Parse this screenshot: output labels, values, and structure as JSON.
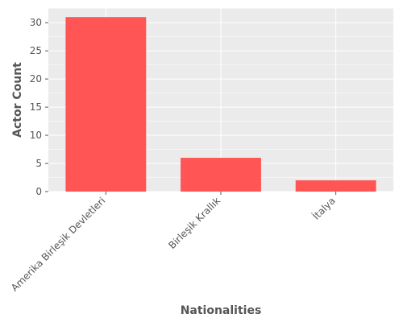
{
  "chart_data": {
    "type": "bar",
    "title": "",
    "xlabel": "Nationalities",
    "ylabel": "Actor Count",
    "categories": [
      "Amerika Birleşik Devletleri",
      "Birleşik Krallık",
      "İtalya"
    ],
    "values": [
      31,
      6,
      2
    ],
    "ylim": [
      0,
      32.6
    ],
    "yticks": [
      0,
      5,
      10,
      15,
      20,
      25,
      30
    ],
    "grid": true,
    "legend": "none",
    "colors": {
      "bar": "#ff5555",
      "panel_background": "#ebebeb",
      "grid": "#ffffff",
      "text": "#555555"
    }
  }
}
